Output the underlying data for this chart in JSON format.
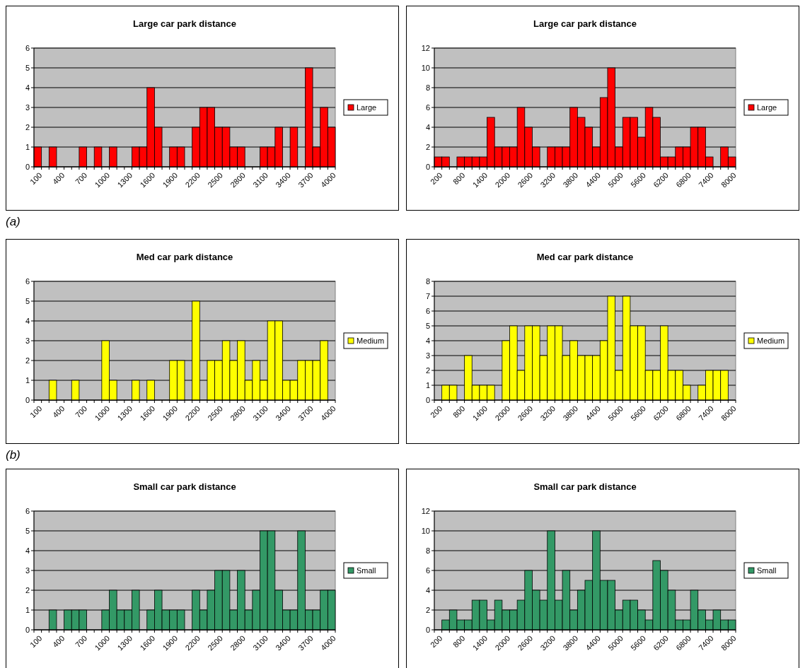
{
  "chart_data": [
    {
      "type": "bar",
      "title": "Large car park distance",
      "categories": [
        "100",
        null,
        null,
        "400",
        null,
        null,
        "700",
        null,
        null,
        "1000",
        null,
        null,
        "1300",
        null,
        null,
        "1600",
        null,
        null,
        "1900",
        null,
        null,
        "2200",
        null,
        null,
        "2500",
        null,
        null,
        "2800",
        null,
        null,
        "3100",
        null,
        null,
        "3400",
        null,
        null,
        "3700",
        null,
        null,
        "4000"
      ],
      "series": [
        {
          "name": "Large",
          "color": "#ff0000",
          "values": [
            1,
            0,
            1,
            0,
            0,
            0,
            1,
            0,
            1,
            0,
            1,
            0,
            0,
            1,
            1,
            4,
            2,
            0,
            1,
            1,
            0,
            2,
            3,
            3,
            2,
            2,
            1,
            1,
            0,
            0,
            1,
            1,
            2,
            0,
            2,
            0,
            5,
            1,
            3,
            2
          ]
        }
      ],
      "ylim": [
        0,
        6
      ],
      "yticks": [
        0,
        1,
        2,
        3,
        4,
        5,
        6
      ],
      "grid": "y",
      "legend": "right",
      "annotations": [
        "(a)"
      ]
    },
    {
      "type": "bar",
      "title": "Large car park distance",
      "categories": [
        "200",
        null,
        null,
        "800",
        null,
        null,
        "1400",
        null,
        null,
        "2000",
        null,
        null,
        "2600",
        null,
        null,
        "3200",
        null,
        null,
        "3800",
        null,
        null,
        "4400",
        null,
        null,
        "5000",
        null,
        null,
        "5600",
        null,
        null,
        "6200",
        null,
        null,
        "6800",
        null,
        null,
        "7400",
        null,
        null,
        "8000"
      ],
      "series": [
        {
          "name": "Large",
          "color": "#ff0000",
          "values": [
            1,
            1,
            0,
            1,
            1,
            1,
            1,
            5,
            2,
            2,
            2,
            6,
            4,
            2,
            0,
            2,
            2,
            2,
            6,
            5,
            4,
            2,
            7,
            10,
            2,
            5,
            5,
            3,
            6,
            5,
            1,
            1,
            2,
            2,
            4,
            4,
            1,
            0,
            2,
            1
          ]
        }
      ],
      "ylim": [
        0,
        12
      ],
      "yticks": [
        0,
        2,
        4,
        6,
        8,
        10,
        12
      ],
      "grid": "y",
      "legend": "right"
    },
    {
      "type": "bar",
      "title": "Med car park distance",
      "categories": [
        "100",
        null,
        null,
        "400",
        null,
        null,
        "700",
        null,
        null,
        "1000",
        null,
        null,
        "1300",
        null,
        null,
        "1600",
        null,
        null,
        "1900",
        null,
        null,
        "2200",
        null,
        null,
        "2500",
        null,
        null,
        "2800",
        null,
        null,
        "3100",
        null,
        null,
        "3400",
        null,
        null,
        "3700",
        null,
        null,
        "4000"
      ],
      "series": [
        {
          "name": "Medium",
          "color": "#ffff00",
          "values": [
            0,
            0,
            1,
            0,
            0,
            1,
            0,
            0,
            0,
            3,
            1,
            0,
            0,
            1,
            0,
            1,
            0,
            0,
            2,
            2,
            0,
            5,
            0,
            2,
            2,
            3,
            2,
            3,
            1,
            2,
            1,
            4,
            4,
            1,
            1,
            2,
            2,
            2,
            3,
            0
          ]
        }
      ],
      "ylim": [
        0,
        6
      ],
      "yticks": [
        0,
        1,
        2,
        3,
        4,
        5,
        6
      ],
      "grid": "y",
      "legend": "right",
      "annotations": [
        "(b)"
      ]
    },
    {
      "type": "bar",
      "title": "Med car park distance",
      "categories": [
        "200",
        null,
        null,
        "800",
        null,
        null,
        "1400",
        null,
        null,
        "2000",
        null,
        null,
        "2600",
        null,
        null,
        "3200",
        null,
        null,
        "3800",
        null,
        null,
        "4400",
        null,
        null,
        "5000",
        null,
        null,
        "5600",
        null,
        null,
        "6200",
        null,
        null,
        "6800",
        null,
        null,
        "7400",
        null,
        null,
        "8000"
      ],
      "series": [
        {
          "name": "Medium",
          "color": "#ffff00",
          "values": [
            0,
            1,
            1,
            0,
            3,
            1,
            1,
            1,
            0,
            4,
            5,
            2,
            5,
            5,
            3,
            5,
            5,
            3,
            4,
            3,
            3,
            3,
            4,
            7,
            2,
            7,
            5,
            5,
            2,
            2,
            5,
            2,
            2,
            1,
            0,
            1,
            2,
            2,
            2,
            0
          ]
        }
      ],
      "ylim": [
        0,
        8
      ],
      "yticks": [
        0,
        1,
        2,
        3,
        4,
        5,
        6,
        7,
        8
      ],
      "grid": "y",
      "legend": "right"
    },
    {
      "type": "bar",
      "title": "Small car park distance",
      "categories": [
        "100",
        null,
        null,
        "400",
        null,
        null,
        "700",
        null,
        null,
        "1000",
        null,
        null,
        "1300",
        null,
        null,
        "1600",
        null,
        null,
        "1900",
        null,
        null,
        "2200",
        null,
        null,
        "2500",
        null,
        null,
        "2800",
        null,
        null,
        "3100",
        null,
        null,
        "3400",
        null,
        null,
        "3700",
        null,
        null,
        "4000"
      ],
      "series": [
        {
          "name": "Small",
          "color": "#339966",
          "values": [
            0,
            0,
            1,
            0,
            1,
            1,
            1,
            0,
            0,
            1,
            2,
            1,
            1,
            2,
            0,
            1,
            2,
            1,
            1,
            1,
            0,
            2,
            1,
            2,
            3,
            3,
            1,
            3,
            1,
            2,
            5,
            5,
            2,
            1,
            1,
            5,
            1,
            1,
            2,
            2
          ]
        }
      ],
      "ylim": [
        0,
        6
      ],
      "yticks": [
        0,
        1,
        2,
        3,
        4,
        5,
        6
      ],
      "grid": "y",
      "legend": "right"
    },
    {
      "type": "bar",
      "title": "Small car park distance",
      "categories": [
        "200",
        null,
        null,
        "800",
        null,
        null,
        "1400",
        null,
        null,
        "2000",
        null,
        null,
        "2600",
        null,
        null,
        "3200",
        null,
        null,
        "3800",
        null,
        null,
        "4400",
        null,
        null,
        "5000",
        null,
        null,
        "5600",
        null,
        null,
        "6200",
        null,
        null,
        "6800",
        null,
        null,
        "7400",
        null,
        null,
        "8000"
      ],
      "series": [
        {
          "name": "Small",
          "color": "#339966",
          "values": [
            0,
            1,
            2,
            1,
            1,
            3,
            3,
            1,
            3,
            2,
            2,
            3,
            6,
            4,
            3,
            10,
            3,
            6,
            2,
            4,
            5,
            10,
            5,
            5,
            2,
            3,
            3,
            2,
            1,
            7,
            6,
            4,
            1,
            1,
            4,
            2,
            1,
            2,
            1,
            1
          ]
        }
      ],
      "ylim": [
        0,
        12
      ],
      "yticks": [
        0,
        2,
        4,
        6,
        8,
        10,
        12
      ],
      "grid": "y",
      "legend": "right"
    }
  ]
}
